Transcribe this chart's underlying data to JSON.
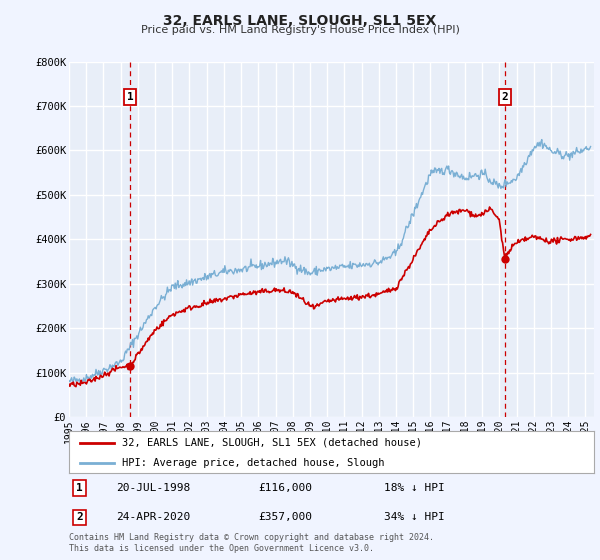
{
  "title": "32, EARLS LANE, SLOUGH, SL1 5EX",
  "subtitle": "Price paid vs. HM Land Registry's House Price Index (HPI)",
  "ylim": [
    0,
    800000
  ],
  "yticks": [
    0,
    100000,
    200000,
    300000,
    400000,
    500000,
    600000,
    700000,
    800000
  ],
  "ytick_labels": [
    "£0",
    "£100K",
    "£200K",
    "£300K",
    "£400K",
    "£500K",
    "£600K",
    "£700K",
    "£800K"
  ],
  "xlim_start": 1995.0,
  "xlim_end": 2025.5,
  "xticks": [
    1995,
    1996,
    1997,
    1998,
    1999,
    2000,
    2001,
    2002,
    2003,
    2004,
    2005,
    2006,
    2007,
    2008,
    2009,
    2010,
    2011,
    2012,
    2013,
    2014,
    2015,
    2016,
    2017,
    2018,
    2019,
    2020,
    2021,
    2022,
    2023,
    2024,
    2025
  ],
  "bg_color": "#e8eef8",
  "grid_color": "#ffffff",
  "hpi_color": "#7aafd4",
  "price_color": "#cc0000",
  "vline_color": "#cc0000",
  "transaction1_x": 1998.54,
  "transaction1_y": 116000,
  "transaction2_x": 2020.31,
  "transaction2_y": 357000,
  "legend_label_price": "32, EARLS LANE, SLOUGH, SL1 5EX (detached house)",
  "legend_label_hpi": "HPI: Average price, detached house, Slough",
  "note1_date": "20-JUL-1998",
  "note1_price": "£116,000",
  "note1_pct": "18% ↓ HPI",
  "note2_date": "24-APR-2020",
  "note2_price": "£357,000",
  "note2_pct": "34% ↓ HPI",
  "footer": "Contains HM Land Registry data © Crown copyright and database right 2024.\nThis data is licensed under the Open Government Licence v3.0."
}
